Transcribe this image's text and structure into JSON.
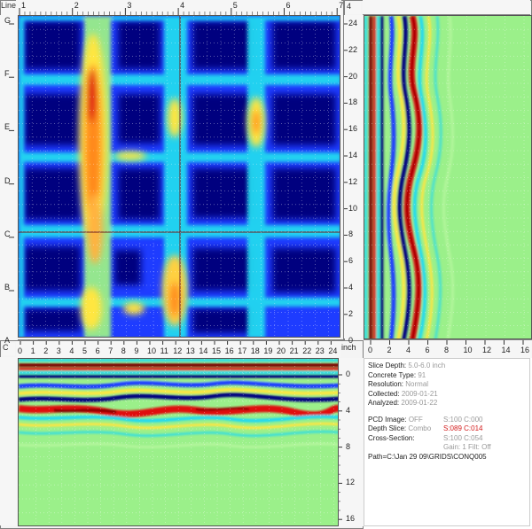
{
  "top_left_ruler": {
    "corner_label": "Line",
    "x_ticks": [
      "1",
      "2",
      "3",
      "4",
      "5",
      "6",
      "7"
    ],
    "y_letters": [
      "G",
      "F",
      "E",
      "D",
      "C",
      "B",
      "A"
    ]
  },
  "right_panel": {
    "corner_label": "4",
    "y_ticks": [
      "24",
      "22",
      "20",
      "18",
      "16",
      "14",
      "12",
      "10",
      "8",
      "6",
      "4",
      "2",
      "0"
    ],
    "x_ticks": [
      "0",
      "2",
      "4",
      "6",
      "8",
      "10",
      "12",
      "14",
      "16"
    ]
  },
  "bottom_panel": {
    "corner_label": "C",
    "x_ticks": [
      "0",
      "1",
      "2",
      "3",
      "4",
      "5",
      "6",
      "7",
      "8",
      "9",
      "10",
      "11",
      "12",
      "13",
      "14",
      "15",
      "16",
      "17",
      "18",
      "19",
      "20",
      "21",
      "22",
      "23",
      "24"
    ],
    "unit_label": "inch",
    "y_ticks": [
      "0",
      "4",
      "8",
      "12",
      "16"
    ]
  },
  "info": {
    "slice_depth_label": "Slice Depth:",
    "slice_depth_value": "5.0-6.0 inch",
    "concrete_type_label": "Concrete Type:",
    "concrete_type_value": "91",
    "resolution_label": "Resolution:",
    "resolution_value": "Normal",
    "collected_label": "Collected:",
    "collected_value": "2009-01-21",
    "analyzed_label": "Analyzed:",
    "analyzed_value": "2009-01-22",
    "pcd_image_label": "PCD Image:",
    "pcd_image_value": "OFF",
    "pcd_image_sc": "S:100 C:000",
    "depth_slice_label": "Depth Slice:",
    "depth_slice_value": "Combo",
    "depth_slice_sc": "S:089 C:014",
    "cross_section_label": "Cross-Section:",
    "cross_section_sc": "S:100 C:054",
    "gain_text": "Gain: 1  Filt: Off",
    "path_text": "Path=C:\\Jan 29 09\\GRIDS\\CONQ005"
  },
  "colors": {
    "deep_blue": "#00007f",
    "blue": "#1e3cff",
    "cyan": "#22d9f0",
    "green": "#9bf08a",
    "yellow": "#ffe640",
    "orange": "#ff8a1a",
    "red": "#e01010",
    "dark_red": "#7a0000"
  }
}
